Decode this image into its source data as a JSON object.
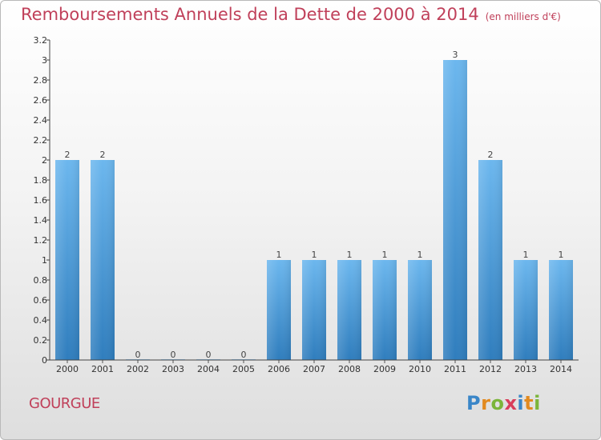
{
  "header": {
    "title": "Remboursements Annuels de la Dette de 2000 à 2014",
    "unit": "(en milliers d'€)"
  },
  "footer": {
    "commune": "GOURGUE",
    "logo": "Proxiti"
  },
  "colors": {
    "title": "#c0405a",
    "bar_top": "#6cb7ee",
    "bar_bottom": "#2f7dbd",
    "axis": "#444444"
  },
  "chart_data": {
    "type": "bar",
    "title": "Remboursements Annuels de la Dette de 2000 à 2014",
    "xlabel": "",
    "ylabel": "",
    "categories": [
      "2000",
      "2001",
      "2002",
      "2003",
      "2004",
      "2005",
      "2006",
      "2007",
      "2008",
      "2009",
      "2010",
      "2011",
      "2012",
      "2013",
      "2014"
    ],
    "values": [
      2,
      2,
      0,
      0,
      0,
      0,
      1,
      1,
      1,
      1,
      1,
      3,
      2,
      1,
      1
    ],
    "data_labels": [
      "2",
      "2",
      "0",
      "0",
      "0",
      "0",
      "1",
      "1",
      "1",
      "1",
      "1",
      "3",
      "2",
      "1",
      "1"
    ],
    "ylim": [
      0,
      3.2
    ],
    "yticks": [
      0,
      0.2,
      0.4,
      0.6,
      0.8,
      1,
      1.2,
      1.4,
      1.6,
      1.8,
      2,
      2.2,
      2.4,
      2.6,
      2.8,
      3,
      3.2
    ],
    "ytick_labels": [
      "0",
      "0.2",
      "0.4",
      "0.6",
      "0.8",
      "1",
      "1.2",
      "1.4",
      "1.6",
      "1.8",
      "2",
      "2.2",
      "2.4",
      "2.6",
      "2.8",
      "3",
      "3.2"
    ],
    "grid": false,
    "legend": "none"
  }
}
